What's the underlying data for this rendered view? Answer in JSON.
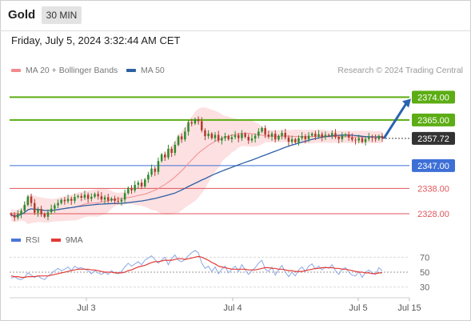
{
  "header": {
    "instrument": "Gold",
    "timeframe": "30 MIN"
  },
  "datetime": "Friday, July 5, 2024 3:32:44 AM CET",
  "legend": {
    "ma20": {
      "label": "MA 20 + Bollinger Bands",
      "color": "#f28b90"
    },
    "ma50": {
      "label": "MA 50",
      "color": "#2d5fa5"
    }
  },
  "credit": "Research © 2024 Trading Central",
  "colors": {
    "up": "#2e8b2e",
    "down": "#b33a2f",
    "band": "#fcd8da",
    "resistance": "#5cad14",
    "support": "#3d6fd6",
    "level_red": "#e0565b",
    "arrow": "#2a62b0",
    "rsi": "#8aa9e6",
    "rsi_ma": "#e53935"
  },
  "chart_data": [
    {
      "type": "candlestick",
      "title": "Gold",
      "interval": "30 MIN",
      "x_ticks": [
        "Jul 3",
        "Jul 4",
        "Jul 5",
        "Jul 15"
      ],
      "ylim": [
        2322,
        2382
      ],
      "price_levels": [
        {
          "value": 2374.0,
          "label": "2374.00",
          "kind": "target",
          "color": "#5cad14"
        },
        {
          "value": 2365.0,
          "label": "2365.00",
          "kind": "resistance",
          "color": "#5cad14"
        },
        {
          "value": 2357.72,
          "label": "2357.72",
          "kind": "last",
          "color": "#333333"
        },
        {
          "value": 2347.0,
          "label": "2347.00",
          "kind": "pivot",
          "color": "#3d6fd6"
        },
        {
          "value": 2338.0,
          "label": "2338.00",
          "kind": "support",
          "color": "#e0565b"
        },
        {
          "value": 2328.0,
          "label": "2328.00",
          "kind": "support",
          "color": "#e0565b"
        }
      ],
      "series": [
        {
          "name": "MA 20 + Bollinger Bands",
          "values": "derived from closes (20-period)"
        },
        {
          "name": "MA 50",
          "values": "derived from closes (50-period)"
        }
      ],
      "closes": [
        2327.5,
        2326.5,
        2327.8,
        2329.2,
        2331.5,
        2334.8,
        2332.2,
        2328.4,
        2329.8,
        2327.9,
        2326.8,
        2328.6,
        2330.0,
        2331.3,
        2332.2,
        2333.5,
        2332.9,
        2333.9,
        2333.1,
        2334.6,
        2335.0,
        2334.3,
        2335.5,
        2333.9,
        2334.7,
        2335.8,
        2334.9,
        2333.6,
        2334.5,
        2333.2,
        2334.0,
        2333.1,
        2332.8,
        2333.6,
        2336.1,
        2338.2,
        2337.2,
        2339.4,
        2340.3,
        2338.8,
        2341.5,
        2343.4,
        2345.8,
        2344.5,
        2348.8,
        2351.4,
        2350.2,
        2353.6,
        2352.0,
        2355.2,
        2358.5,
        2357.3,
        2360.4,
        2364.1,
        2363.6,
        2365.3,
        2364.5,
        2360.9,
        2358.6,
        2359.6,
        2357.8,
        2359.1,
        2356.9,
        2357.8,
        2358.6,
        2357.4,
        2358.2,
        2359.0,
        2357.8,
        2359.6,
        2358.3,
        2356.9,
        2357.7,
        2358.8,
        2360.4,
        2361.8,
        2359.2,
        2358.4,
        2359.6,
        2357.3,
        2358.7,
        2359.9,
        2358.1,
        2356.4,
        2357.4,
        2356.2,
        2357.8,
        2358.6,
        2357.4,
        2358.8,
        2359.6,
        2358.4,
        2359.4,
        2358.2,
        2359.1,
        2358.8,
        2359.8,
        2358.3,
        2357.4,
        2358.8,
        2359.3,
        2358.1,
        2357.2,
        2356.9,
        2357.8,
        2356.3,
        2357.5,
        2358.3,
        2357.9,
        2357.4,
        2358.7,
        2357.72
      ],
      "forecast_arrow": {
        "from": 2357.72,
        "to": 2374.0
      }
    },
    {
      "type": "line",
      "title": "",
      "legend": [
        "RSI",
        "9MA"
      ],
      "y_ticks": [
        70,
        50,
        30
      ],
      "ylim": [
        20,
        80
      ],
      "series": [
        {
          "name": "RSI",
          "values": [
            42,
            44,
            41,
            40,
            43,
            49,
            46,
            43,
            45,
            42,
            40,
            45,
            48,
            52,
            55,
            52,
            54,
            57,
            52,
            58,
            55,
            56,
            54,
            52,
            48,
            52,
            49,
            47,
            50,
            47,
            52,
            49,
            48,
            51,
            57,
            62,
            58,
            61,
            64,
            60,
            66,
            69,
            72,
            67,
            62,
            66,
            70,
            60,
            68,
            73,
            66,
            64,
            67,
            72,
            76,
            79,
            76,
            62,
            55,
            58,
            51,
            57,
            48,
            54,
            58,
            49,
            54,
            58,
            51,
            60,
            53,
            47,
            52,
            56,
            62,
            66,
            54,
            51,
            57,
            46,
            53,
            59,
            50,
            44,
            50,
            45,
            53,
            57,
            51,
            58,
            61,
            54,
            58,
            53,
            57,
            55,
            60,
            52,
            47,
            54,
            56,
            50,
            46,
            45,
            51,
            43,
            50,
            53,
            49,
            47,
            56,
            52
          ]
        },
        {
          "name": "9MA",
          "values": [
            45,
            44,
            44,
            43,
            43,
            44,
            44,
            44,
            45,
            45,
            45,
            45,
            46,
            47,
            48,
            49,
            50,
            51,
            52,
            53,
            54,
            54,
            54,
            54,
            53,
            53,
            52,
            51,
            50,
            50,
            50,
            49,
            49,
            49,
            50,
            52,
            53,
            55,
            57,
            58,
            59,
            61,
            63,
            64,
            64,
            65,
            66,
            66,
            66,
            67,
            68,
            68,
            67,
            68,
            69,
            70,
            71,
            70,
            68,
            66,
            63,
            61,
            58,
            57,
            56,
            55,
            54,
            54,
            54,
            54,
            54,
            53,
            53,
            53,
            54,
            55,
            56,
            56,
            55,
            55,
            54,
            54,
            53,
            52,
            52,
            51,
            51,
            51,
            52,
            53,
            54,
            55,
            55,
            56,
            56,
            56,
            56,
            55,
            55,
            54,
            54,
            53,
            52,
            51,
            50,
            50,
            49,
            49,
            48,
            48,
            49,
            49
          ]
        }
      ]
    }
  ]
}
